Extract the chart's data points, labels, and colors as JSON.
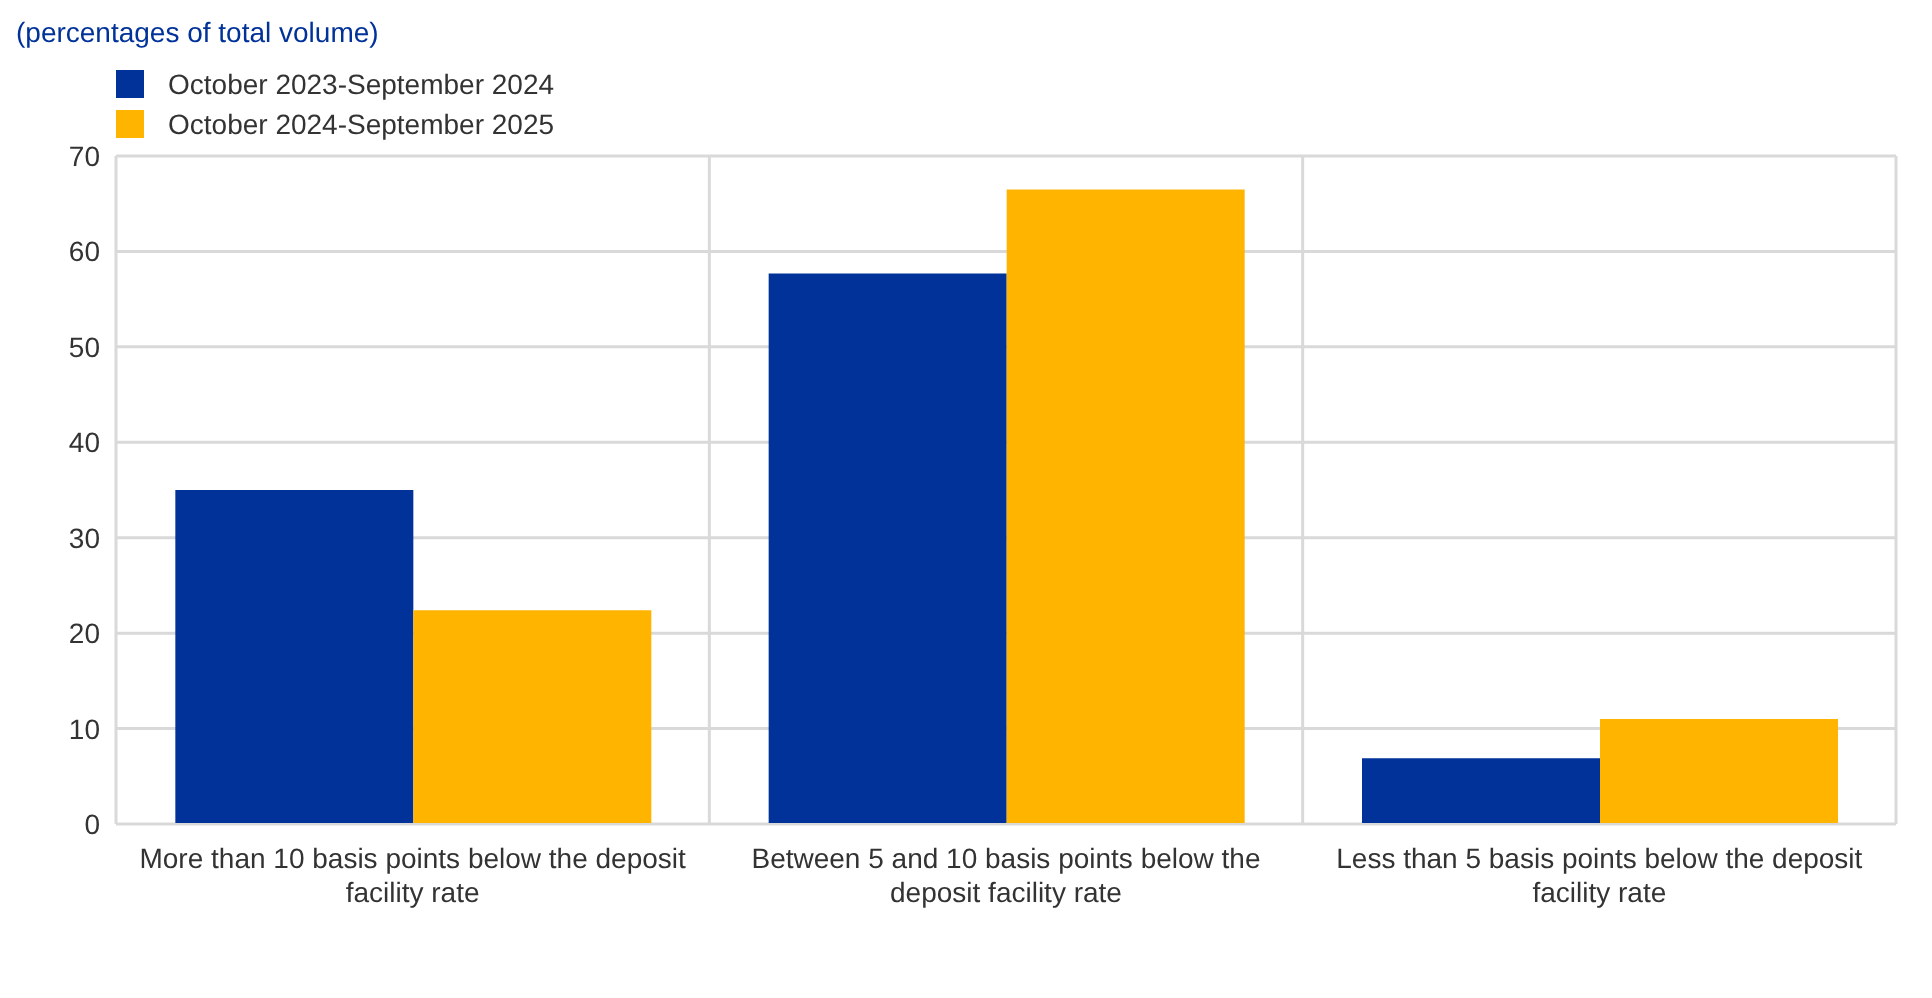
{
  "chart_data": {
    "type": "bar",
    "subtitle": "(percentages of total volume)",
    "categories": [
      "More than 10 basis points below the deposit facility rate",
      "Between 5 and 10 basis points below the deposit facility rate",
      "Less than 5 basis points below the deposit facility rate"
    ],
    "series": [
      {
        "name": "October 2023-September 2024",
        "color": "#003299",
        "values": [
          35,
          57.7,
          6.9
        ]
      },
      {
        "name": "October 2024-September 2025",
        "color": "#ffb400",
        "values": [
          22.4,
          66.5,
          11
        ]
      }
    ],
    "ylim": [
      0,
      70
    ],
    "yticks": [
      0,
      10,
      20,
      30,
      40,
      50,
      60,
      70
    ],
    "grid": true,
    "legend": "top left"
  }
}
